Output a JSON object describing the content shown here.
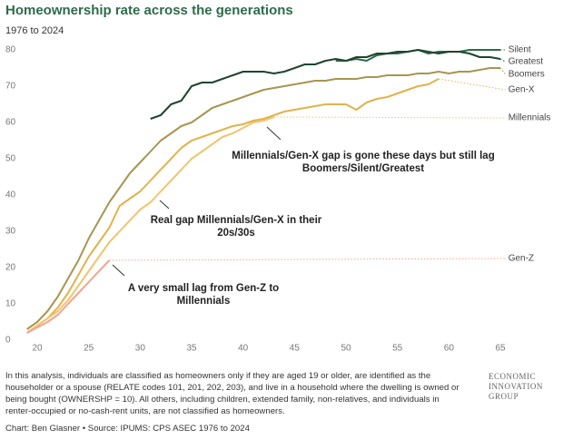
{
  "chart_data": {
    "type": "line",
    "title": "Homeownership rate across the generations",
    "subtitle": "1976 to 2024",
    "x": [
      19,
      20,
      21,
      22,
      23,
      24,
      25,
      26,
      27,
      28,
      29,
      30,
      31,
      32,
      33,
      34,
      35,
      36,
      37,
      38,
      39,
      40,
      41,
      42,
      43,
      44,
      45,
      46,
      47,
      48,
      49,
      50,
      51,
      52,
      53,
      54,
      55,
      56,
      57,
      58,
      59,
      60,
      61,
      62,
      63,
      64,
      65
    ],
    "series": [
      {
        "name": "Silent",
        "color": "#2f6b47",
        "values": [
          null,
          null,
          null,
          null,
          null,
          null,
          null,
          null,
          null,
          null,
          null,
          null,
          null,
          null,
          null,
          null,
          null,
          null,
          null,
          null,
          null,
          null,
          null,
          null,
          null,
          null,
          null,
          null,
          null,
          null,
          77,
          77,
          77.5,
          77,
          78.5,
          79,
          79,
          79.5,
          80,
          79,
          79.5,
          79.5,
          79.5,
          80,
          80,
          80,
          80
        ]
      },
      {
        "name": "Greatest",
        "color": "#1d4530",
        "values": [
          null,
          null,
          null,
          null,
          null,
          null,
          null,
          null,
          null,
          null,
          null,
          null,
          61,
          62,
          65,
          66,
          70,
          71,
          71,
          72,
          73,
          74,
          74,
          74,
          73.5,
          74,
          75,
          76,
          76,
          77,
          77.5,
          77,
          78,
          78,
          79,
          79,
          79.5,
          79.5,
          80,
          79.5,
          79,
          79.5,
          79.5,
          79,
          78,
          78,
          77.5
        ]
      },
      {
        "name": "Boomers",
        "color": "#a69650",
        "values": [
          3,
          5,
          8,
          12,
          17,
          22,
          28,
          33,
          38,
          42,
          46,
          49,
          52,
          55,
          57,
          59,
          60,
          62,
          64,
          65,
          66,
          67,
          68,
          69,
          69.5,
          70,
          70.5,
          71,
          71.5,
          71.5,
          72,
          72,
          72,
          72.5,
          72.5,
          73,
          73,
          73,
          73.5,
          73.5,
          74,
          73.5,
          74,
          74,
          74.5,
          75,
          75
        ]
      },
      {
        "name": "Gen-X",
        "color": "#e2b24c",
        "values": [
          2,
          4,
          6,
          9,
          13,
          18,
          23,
          27,
          31,
          37,
          39,
          41,
          44,
          47,
          50,
          53,
          55,
          56,
          57,
          58,
          59,
          59.5,
          60.5,
          61,
          62,
          63,
          63.5,
          64,
          64.5,
          65,
          65,
          65,
          63.5,
          65.5,
          66.5,
          67,
          68,
          69,
          70,
          70.5,
          72,
          null,
          null,
          null,
          null,
          null,
          null
        ]
      },
      {
        "name": "Millennials",
        "color": "#f1c46e",
        "values": [
          2,
          4,
          6,
          8,
          11,
          15,
          19,
          23,
          27,
          30,
          33,
          36,
          38,
          41,
          44,
          47,
          50,
          52,
          54,
          56,
          57,
          58.5,
          60,
          60.5,
          61.5,
          null,
          null,
          null,
          null,
          null,
          null,
          null,
          null,
          null,
          null,
          null,
          null,
          null,
          null,
          null,
          null,
          null,
          null,
          null,
          null,
          null,
          null
        ]
      },
      {
        "name": "Gen-Z",
        "color": "#f0a48e",
        "values": [
          2,
          3.5,
          5,
          7,
          10,
          13,
          16,
          19,
          22,
          null,
          null,
          null,
          null,
          null,
          null,
          null,
          null,
          null,
          null,
          null,
          null,
          null,
          null,
          null,
          null,
          null,
          null,
          null,
          null,
          null,
          null,
          null,
          null,
          null,
          null,
          null,
          null,
          null,
          null,
          null,
          null,
          null,
          null,
          null,
          null,
          null,
          null
        ]
      }
    ],
    "xlim": [
      19,
      65.5
    ],
    "ylim": [
      0,
      82
    ],
    "xticks": [
      20,
      25,
      30,
      35,
      40,
      45,
      50,
      55,
      60,
      65
    ],
    "yticks": [
      0,
      10,
      20,
      30,
      40,
      50,
      60,
      70,
      80
    ],
    "annotations": [
      "Millennials/Gen-X gap is gone these days but still lag",
      "Boomers/Silent/Greatest",
      "Real gap Millennials/Gen-X in their",
      "20s/30s",
      "A very small lag from Gen-Z to",
      "Millennials"
    ],
    "footnote": "In this analysis, individuals are classified as homeowners only if they are aged 19 or older, are identified as the householder or a spouse (RELATE codes 101, 201, 202, 203), and live in a household where the dwelling is owned or being bought (OWNERSHP = 10). All others, including children, extended family, non-relatives, and individuals in renter-occupied or no-cash-rent units, are not classified as homeowners.",
    "source": "Chart: Ben Glasner • Source: IPUMS: CPS ASEC 1976 to 2024",
    "logo": [
      "ECONOMIC",
      "INNOVATION",
      "GROUP"
    ]
  }
}
